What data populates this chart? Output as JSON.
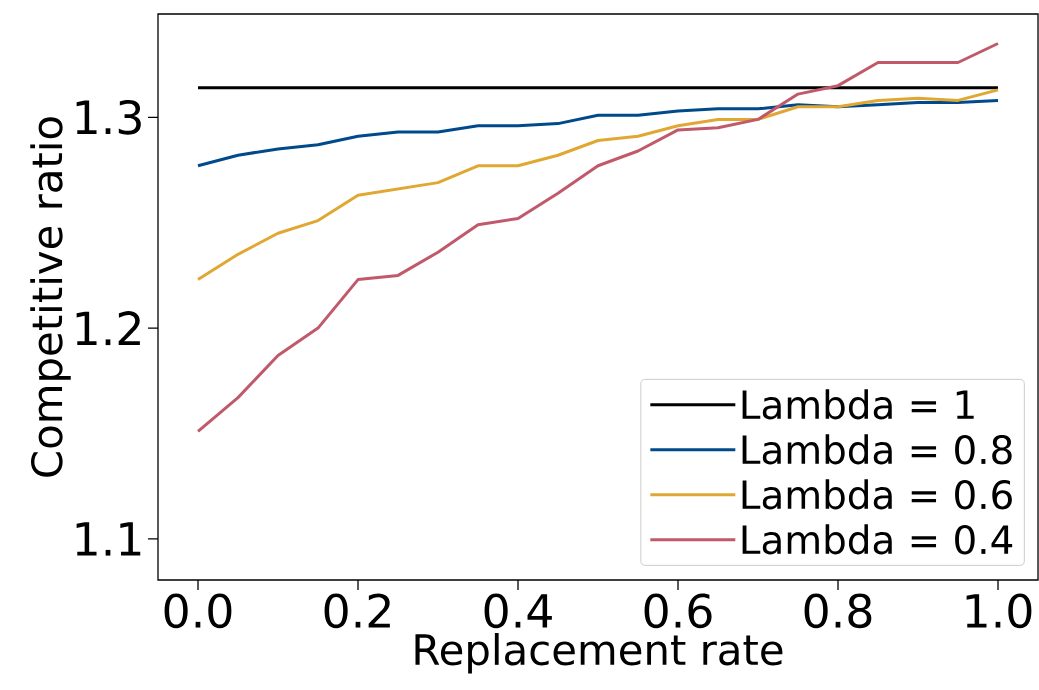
{
  "chart_data": {
    "type": "line",
    "xlabel": "Replacement rate",
    "ylabel": "Competitive ratio",
    "x": [
      0.0,
      0.05,
      0.1,
      0.15,
      0.2,
      0.25,
      0.3,
      0.35,
      0.4,
      0.45,
      0.5,
      0.55,
      0.6,
      0.65,
      0.7,
      0.75,
      0.8,
      0.85,
      0.9,
      0.95,
      1.0
    ],
    "series": [
      {
        "name": "Lambda = 1",
        "color": "#000000",
        "values": [
          1.314,
          1.314,
          1.314,
          1.314,
          1.314,
          1.314,
          1.314,
          1.314,
          1.314,
          1.314,
          1.314,
          1.314,
          1.314,
          1.314,
          1.314,
          1.314,
          1.314,
          1.314,
          1.314,
          1.314,
          1.314
        ]
      },
      {
        "name": "Lambda = 0.8",
        "color": "#004a8c",
        "values": [
          1.277,
          1.282,
          1.285,
          1.287,
          1.291,
          1.293,
          1.293,
          1.296,
          1.296,
          1.297,
          1.301,
          1.301,
          1.303,
          1.304,
          1.304,
          1.306,
          1.305,
          1.306,
          1.307,
          1.307,
          1.308
        ]
      },
      {
        "name": "Lambda = 0.6",
        "color": "#e0a832",
        "values": [
          1.223,
          1.235,
          1.245,
          1.251,
          1.263,
          1.266,
          1.269,
          1.277,
          1.277,
          1.282,
          1.289,
          1.291,
          1.296,
          1.299,
          1.299,
          1.305,
          1.305,
          1.308,
          1.309,
          1.308,
          1.313
        ]
      },
      {
        "name": "Lambda = 0.4",
        "color": "#c05a6a",
        "values": [
          1.151,
          1.167,
          1.187,
          1.2,
          1.223,
          1.225,
          1.236,
          1.249,
          1.252,
          1.264,
          1.277,
          1.284,
          1.294,
          1.295,
          1.299,
          1.311,
          1.315,
          1.326,
          1.326,
          1.326,
          1.335
        ]
      }
    ],
    "xlim": [
      -0.05,
      1.05
    ],
    "ylim": [
      1.0805,
      1.349
    ],
    "xticks": [
      {
        "value": 0.0,
        "label": "0.0"
      },
      0.2,
      0.4,
      0.6,
      0.8,
      {
        "value": 1.0,
        "label": "1.0"
      }
    ],
    "yticks": [
      1.1,
      1.2,
      1.3
    ],
    "legend": "bottom right",
    "marker": "none",
    "line_style": "solid",
    "grid": false
  }
}
